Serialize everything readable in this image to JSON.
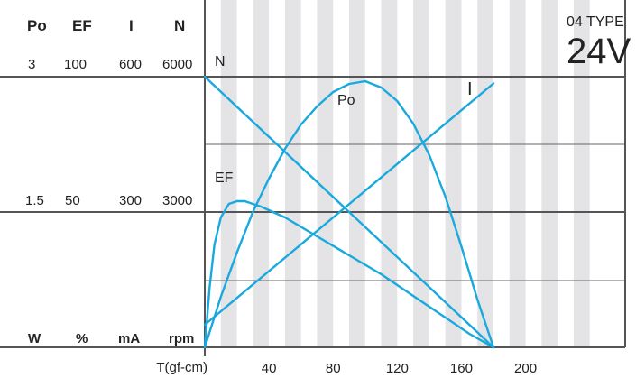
{
  "header": {
    "columns": [
      "Po",
      "EF",
      "I",
      "N"
    ],
    "row_top": [
      "3",
      "100",
      "600",
      "6000"
    ],
    "row_mid": [
      "1.5",
      "50",
      "300",
      "3000"
    ],
    "units": [
      "W",
      "%",
      "mA",
      "rpm"
    ]
  },
  "model": {
    "type_label": "04 TYPE",
    "voltage": "24V"
  },
  "chart_data": {
    "type": "line",
    "title": "",
    "xlabel": "T(gf-cm)",
    "x_ticks": [
      "40",
      "80",
      "120",
      "160",
      "200"
    ],
    "xlim": [
      0,
      210
    ],
    "grid": true,
    "y_axes": [
      {
        "name": "Po",
        "unit": "W",
        "ticks": [
          0,
          1.5,
          3
        ]
      },
      {
        "name": "EF",
        "unit": "%",
        "ticks": [
          0,
          50,
          100
        ]
      },
      {
        "name": "I",
        "unit": "mA",
        "ticks": [
          0,
          300,
          600
        ]
      },
      {
        "name": "N",
        "unit": "rpm",
        "ticks": [
          0,
          3000,
          6000
        ]
      }
    ],
    "series": [
      {
        "name": "N",
        "axis": "N",
        "x": [
          0,
          180
        ],
        "y": [
          6000,
          0
        ]
      },
      {
        "name": "I",
        "axis": "I",
        "x": [
          0,
          180
        ],
        "y": [
          50,
          585
        ]
      },
      {
        "name": "Po",
        "axis": "Po",
        "x": [
          0,
          10,
          20,
          30,
          40,
          50,
          60,
          70,
          80,
          90,
          100,
          110,
          120,
          130,
          140,
          150,
          160,
          170,
          180
        ],
        "y": [
          0,
          0.56,
          1.05,
          1.5,
          1.87,
          2.2,
          2.47,
          2.67,
          2.83,
          2.92,
          2.95,
          2.88,
          2.73,
          2.48,
          2.13,
          1.67,
          1.12,
          0.53,
          0
        ]
      },
      {
        "name": "EF",
        "axis": "EF",
        "x": [
          0,
          3,
          6,
          10,
          15,
          20,
          25,
          35,
          50,
          70,
          90,
          110,
          130,
          150,
          165,
          180
        ],
        "y": [
          0,
          22,
          38,
          48,
          53,
          54,
          54,
          52,
          48,
          41,
          34,
          27,
          19,
          11,
          5,
          0
        ]
      }
    ],
    "line_color": "#19a9df"
  }
}
